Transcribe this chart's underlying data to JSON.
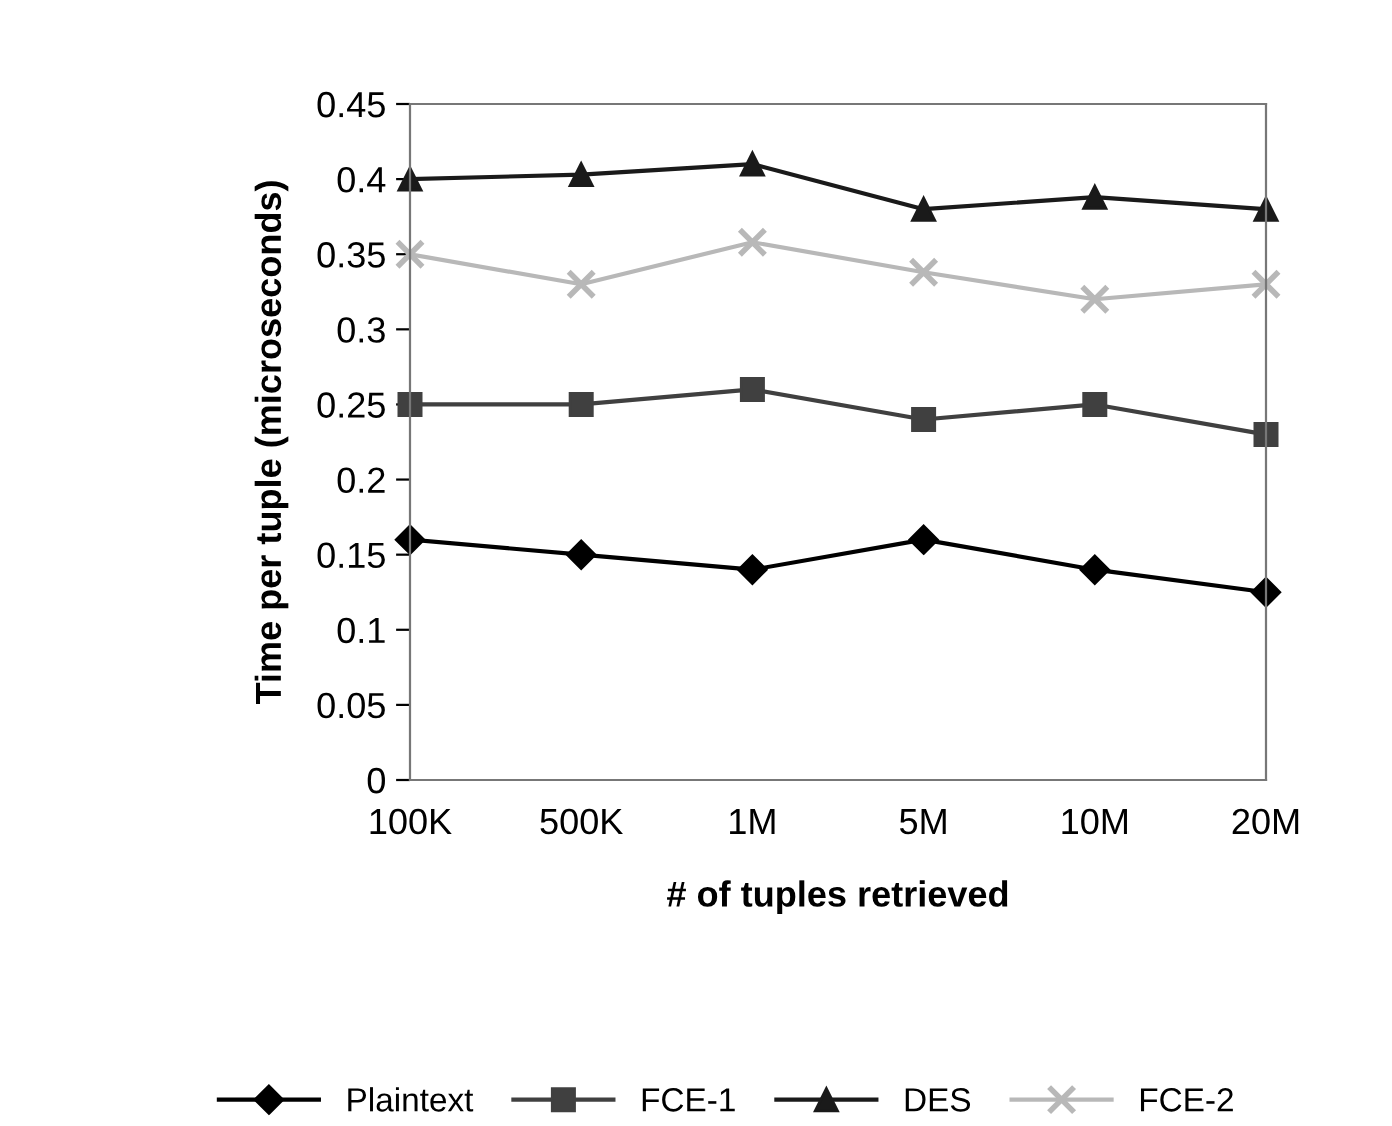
{
  "chart_data": {
    "type": "line",
    "xlabel": "# of tuples retrieved",
    "ylabel": "Time per tuple (microseconds)",
    "categories": [
      "100K",
      "500K",
      "1M",
      "5M",
      "10M",
      "20M"
    ],
    "ylim": [
      0,
      0.45
    ],
    "yticks": [
      0,
      0.05,
      0.1,
      0.15,
      0.2,
      0.25,
      0.3,
      0.35,
      0.4,
      0.45
    ],
    "grid": false,
    "legend": "bottom",
    "line_style": "solid",
    "series": [
      {
        "name": "Plaintext",
        "color": "#000000",
        "marker": "diamond",
        "values": [
          0.16,
          0.15,
          0.14,
          0.16,
          0.14,
          0.125
        ]
      },
      {
        "name": "FCE-1",
        "color": "#404040",
        "marker": "square",
        "values": [
          0.25,
          0.25,
          0.26,
          0.24,
          0.25,
          0.23
        ]
      },
      {
        "name": "DES",
        "color": "#1a1a1a",
        "marker": "triangle",
        "values": [
          0.4,
          0.403,
          0.41,
          0.38,
          0.388,
          0.38
        ]
      },
      {
        "name": "FCE-2",
        "color": "#b8b8b8",
        "marker": "cross",
        "values": [
          0.35,
          0.33,
          0.358,
          0.338,
          0.32,
          0.33
        ]
      }
    ]
  }
}
